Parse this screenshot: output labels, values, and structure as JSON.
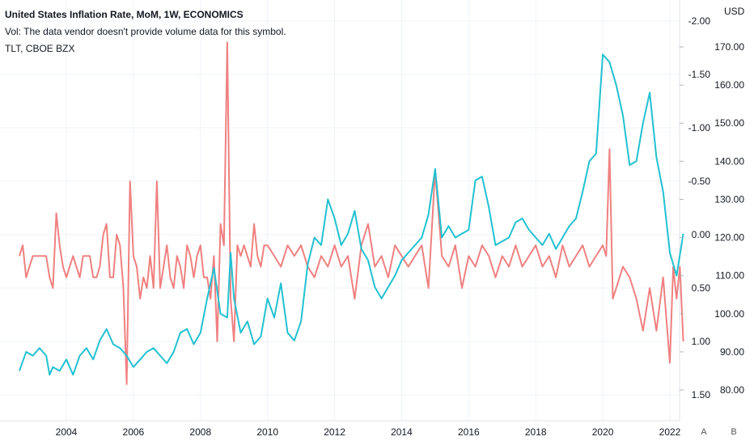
{
  "legend": {
    "main": "United States Inflation Rate, MoM, 1W, ECONOMICS",
    "vol": "Vol: The data vendor doesn't provide volume data for this symbol.",
    "tlt": "TLT, CBOE BZX"
  },
  "axis": {
    "currency": "USD",
    "auto_button": "A",
    "log_button": "B"
  },
  "colors": {
    "inflation": "#f08080",
    "tlt": "#22c1d1",
    "grid": "#f0f3fa",
    "axis_text": "#131722",
    "background": "#ffffff"
  },
  "chart_data": {
    "type": "line",
    "x_ticks": [
      "2004",
      "2006",
      "2008",
      "2010",
      "2012",
      "2014",
      "2016",
      "2018",
      "2020",
      "2022"
    ],
    "x_range": [
      2002.6,
      2022.65
    ],
    "left_scale_note": "inflation values plotted on inverted scale",
    "inflation_axis": {
      "ticks": [
        "-2.00",
        "-1.50",
        "-1.00",
        "-0.50",
        "0.00",
        "0.50",
        "1.00",
        "1.50"
      ],
      "range": [
        -2.0,
        1.5
      ],
      "inverted": true
    },
    "tlt_axis": {
      "ticks": [
        "170.00",
        "160.00",
        "150.00",
        "140.00",
        "130.00",
        "120.00",
        "110.00",
        "100.00",
        "90.00",
        "80.00"
      ],
      "range": [
        80,
        170
      ]
    },
    "series": [
      {
        "name": "United States Inflation Rate, MoM",
        "axis": "inflation",
        "x": [
          2002.6,
          2002.7,
          2002.8,
          2002.9,
          2003.0,
          2003.1,
          2003.2,
          2003.3,
          2003.4,
          2003.5,
          2003.6,
          2003.7,
          2003.8,
          2003.9,
          2004.0,
          2004.1,
          2004.2,
          2004.3,
          2004.4,
          2004.5,
          2004.6,
          2004.7,
          2004.8,
          2004.9,
          2005.0,
          2005.1,
          2005.2,
          2005.3,
          2005.4,
          2005.5,
          2005.6,
          2005.7,
          2005.8,
          2005.9,
          2006.0,
          2006.1,
          2006.2,
          2006.3,
          2006.4,
          2006.5,
          2006.6,
          2006.7,
          2006.8,
          2006.9,
          2007.0,
          2007.1,
          2007.2,
          2007.3,
          2007.4,
          2007.5,
          2007.6,
          2007.7,
          2007.8,
          2007.9,
          2008.0,
          2008.1,
          2008.2,
          2008.3,
          2008.4,
          2008.5,
          2008.6,
          2008.7,
          2008.8,
          2008.9,
          2009.0,
          2009.1,
          2009.2,
          2009.3,
          2009.4,
          2009.5,
          2009.6,
          2009.7,
          2009.8,
          2009.9,
          2010.0,
          2010.2,
          2010.4,
          2010.6,
          2010.8,
          2011.0,
          2011.2,
          2011.4,
          2011.6,
          2011.8,
          2012.0,
          2012.2,
          2012.4,
          2012.6,
          2012.8,
          2013.0,
          2013.2,
          2013.4,
          2013.6,
          2013.8,
          2014.0,
          2014.2,
          2014.4,
          2014.6,
          2014.8,
          2015.0,
          2015.2,
          2015.4,
          2015.6,
          2015.8,
          2016.0,
          2016.2,
          2016.4,
          2016.6,
          2016.8,
          2017.0,
          2017.2,
          2017.4,
          2017.6,
          2017.8,
          2018.0,
          2018.2,
          2018.4,
          2018.6,
          2018.8,
          2019.0,
          2019.2,
          2019.4,
          2019.6,
          2019.8,
          2020.0,
          2020.1,
          2020.2,
          2020.3,
          2020.4,
          2020.6,
          2020.8,
          2021.0,
          2021.2,
          2021.4,
          2021.6,
          2021.8,
          2022.0,
          2022.1,
          2022.2,
          2022.3,
          2022.4
        ],
        "values": [
          0.2,
          0.1,
          0.4,
          0.3,
          0.2,
          0.2,
          0.2,
          0.2,
          0.2,
          0.4,
          0.5,
          -0.2,
          0.1,
          0.3,
          0.4,
          0.3,
          0.2,
          0.3,
          0.4,
          0.2,
          0.2,
          0.2,
          0.4,
          0.4,
          0.3,
          0.0,
          -0.1,
          0.4,
          0.4,
          0.0,
          0.1,
          0.5,
          1.4,
          -0.5,
          0.2,
          0.3,
          0.6,
          0.4,
          0.5,
          0.2,
          0.5,
          -0.5,
          0.5,
          0.3,
          0.1,
          0.4,
          0.5,
          0.2,
          0.3,
          0.5,
          0.1,
          0.2,
          0.4,
          0.2,
          0.1,
          0.4,
          0.4,
          0.6,
          0.2,
          1.0,
          -0.1,
          0.1,
          -1.8,
          0.6,
          1.0,
          0.1,
          0.2,
          0.1,
          0.2,
          0.3,
          -0.1,
          0.2,
          0.3,
          0.1,
          0.1,
          0.2,
          0.3,
          0.1,
          0.2,
          0.1,
          0.3,
          0.4,
          0.2,
          0.3,
          0.1,
          0.3,
          0.2,
          0.6,
          0.1,
          -0.1,
          0.3,
          0.2,
          0.4,
          0.1,
          0.2,
          0.3,
          0.2,
          0.1,
          0.5,
          -0.6,
          0.2,
          0.3,
          0.1,
          0.5,
          0.2,
          0.3,
          0.1,
          0.2,
          0.4,
          0.2,
          0.3,
          0.1,
          0.3,
          0.2,
          0.1,
          0.3,
          0.2,
          0.4,
          0.1,
          0.3,
          0.2,
          0.1,
          0.3,
          0.2,
          0.1,
          0.2,
          -0.8,
          0.6,
          0.5,
          0.3,
          0.4,
          0.6,
          0.9,
          0.5,
          0.9,
          0.4,
          1.2,
          0.3,
          0.6,
          0.3,
          1.0
        ]
      },
      {
        "name": "TLT, CBOE BZX",
        "axis": "tlt",
        "x": [
          2002.6,
          2002.8,
          2003.0,
          2003.2,
          2003.4,
          2003.5,
          2003.6,
          2003.8,
          2004.0,
          2004.2,
          2004.4,
          2004.6,
          2004.8,
          2005.0,
          2005.2,
          2005.4,
          2005.6,
          2005.8,
          2006.0,
          2006.2,
          2006.4,
          2006.6,
          2006.8,
          2007.0,
          2007.2,
          2007.4,
          2007.6,
          2007.8,
          2008.0,
          2008.2,
          2008.4,
          2008.6,
          2008.8,
          2008.9,
          2009.0,
          2009.2,
          2009.4,
          2009.6,
          2009.8,
          2010.0,
          2010.2,
          2010.4,
          2010.6,
          2010.8,
          2011.0,
          2011.2,
          2011.4,
          2011.6,
          2011.8,
          2012.0,
          2012.2,
          2012.4,
          2012.6,
          2012.8,
          2013.0,
          2013.2,
          2013.4,
          2013.6,
          2013.8,
          2014.0,
          2014.2,
          2014.4,
          2014.6,
          2014.8,
          2015.0,
          2015.2,
          2015.4,
          2015.6,
          2015.8,
          2016.0,
          2016.2,
          2016.4,
          2016.6,
          2016.8,
          2017.0,
          2017.2,
          2017.4,
          2017.6,
          2017.8,
          2018.0,
          2018.2,
          2018.4,
          2018.6,
          2018.8,
          2019.0,
          2019.2,
          2019.4,
          2019.6,
          2019.8,
          2020.0,
          2020.2,
          2020.4,
          2020.6,
          2020.8,
          2021.0,
          2021.2,
          2021.4,
          2021.6,
          2021.8,
          2022.0,
          2022.2,
          2022.4
        ],
        "values": [
          85,
          90,
          89,
          91,
          89,
          84,
          86,
          85,
          88,
          84,
          89,
          91,
          88,
          93,
          96,
          92,
          91,
          89,
          86,
          88,
          90,
          91,
          89,
          87,
          90,
          95,
          96,
          92,
          95,
          104,
          112,
          100,
          99,
          116,
          104,
          95,
          98,
          92,
          94,
          104,
          99,
          108,
          95,
          93,
          98,
          113,
          120,
          118,
          130,
          125,
          118,
          121,
          127,
          117,
          114,
          107,
          104,
          107,
          110,
          114,
          116,
          118,
          120,
          126,
          138,
          120,
          123,
          120,
          121,
          122,
          135,
          136,
          128,
          118,
          119,
          120,
          124,
          125,
          122,
          120,
          118,
          121,
          117,
          120,
          123,
          125,
          132,
          140,
          142,
          168,
          166,
          160,
          152,
          139,
          140,
          150,
          158,
          141,
          132,
          116,
          110,
          121
        ]
      }
    ]
  }
}
